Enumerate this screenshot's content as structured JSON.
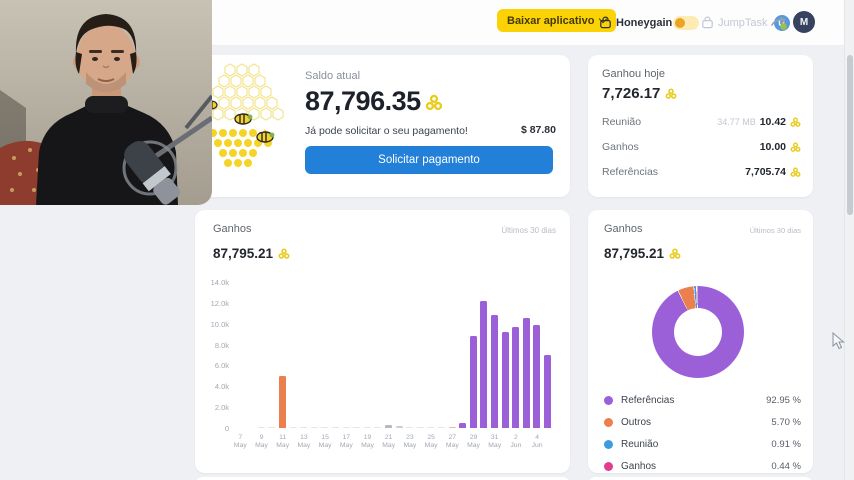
{
  "colors": {
    "page_bg": "#eef0f4",
    "accent_yellow": "#fbd205",
    "accent_blue": "#2280d8",
    "honey_icon": "#e8cd1e",
    "purple": "#9b5fd8",
    "orange": "#ec7f4e",
    "blue": "#3f9be0",
    "pink": "#e23c8d"
  },
  "header": {
    "download_button": "Baixar aplicativo",
    "honeygain_label": "Honeygain",
    "jumptask_label": "JumpTask",
    "jumptask_badge_glyph": "U",
    "avatar_initial": "M"
  },
  "balance_card": {
    "title": "Saldo atual",
    "balance": "87,796.35",
    "message": "Já pode solicitar o seu pagamento!",
    "usd_value": "$ 87.80",
    "button_label": "Solicitar pagamento"
  },
  "today_card": {
    "title": "Ganhou hoje",
    "total": "7,726.17",
    "rows": [
      {
        "label": "Reunião",
        "traffic": "34.77 MB",
        "value": "10.42"
      },
      {
        "label": "Ganhos",
        "traffic": "",
        "value": "10.00"
      },
      {
        "label": "Referências",
        "traffic": "",
        "value": "7,705.74"
      }
    ]
  },
  "chart_data": [
    {
      "type": "bar",
      "title": "Ganhos",
      "period_label": "Últimos 30 dias",
      "total_display": "87,795.21",
      "x": [
        "7 May",
        "8 May",
        "9 May",
        "10 May",
        "11 May",
        "12 May",
        "13 May",
        "14 May",
        "15 May",
        "16 May",
        "17 May",
        "18 May",
        "19 May",
        "20 May",
        "21 May",
        "22 May",
        "23 May",
        "24 May",
        "25 May",
        "26 May",
        "27 May",
        "28 May",
        "29 May",
        "30 May",
        "31 May",
        "1 Jun",
        "2 Jun",
        "3 Jun",
        "4 Jun",
        "5 Jun"
      ],
      "values": [
        0,
        0,
        40,
        40,
        5000,
        130,
        110,
        130,
        110,
        130,
        110,
        110,
        130,
        110,
        260,
        200,
        110,
        110,
        110,
        110,
        130,
        500,
        8800,
        12200,
        10800,
        9200,
        9700,
        10600,
        9900,
        7000
      ],
      "bar_colors": [
        "#9b5fd8",
        "#9b5fd8",
        "#e4e1e9",
        "#e4e1e9",
        "#ec7f4e",
        "#e6e3eb",
        "#e6e3eb",
        "#e6e3eb",
        "#e6e3eb",
        "#e6e3eb",
        "#e6e3eb",
        "#e6e3eb",
        "#e6e3eb",
        "#e6e3eb",
        "#b9b6c2",
        "#cfccd6",
        "#e6e3eb",
        "#e6e3eb",
        "#e6e3eb",
        "#e6e3eb",
        "#dfb8b8",
        "#9b5fd8",
        "#9b5fd8",
        "#9b5fd8",
        "#9b5fd8",
        "#9b5fd8",
        "#9b5fd8",
        "#9b5fd8",
        "#9b5fd8",
        "#9b5fd8"
      ],
      "xtick_every": 2,
      "ylim": [
        0,
        14000
      ],
      "yticks": [
        0,
        2000,
        4000,
        6000,
        8000,
        10000,
        12000,
        14000
      ],
      "ytick_labels": [
        "0",
        "2.0k",
        "4.0k",
        "6.0k",
        "8.0k",
        "10.0k",
        "12.0k",
        "14.0k"
      ],
      "grid": false,
      "legend": "none"
    },
    {
      "type": "pie",
      "donut": true,
      "title": "Ganhos",
      "period_label": "Últimos 30 dias",
      "total_display": "87,795.21",
      "labels": [
        "Referências",
        "Outros",
        "Reunião",
        "Ganhos"
      ],
      "values": [
        92.95,
        5.7,
        0.91,
        0.44
      ],
      "display_values": [
        "92.95 %",
        "5.70 %",
        "0.91 %",
        "0.44 %"
      ],
      "colors": [
        "#9b5fd8",
        "#ec7f4e",
        "#3f9be0",
        "#e23c8d"
      ],
      "legend_position": "bottom"
    }
  ]
}
